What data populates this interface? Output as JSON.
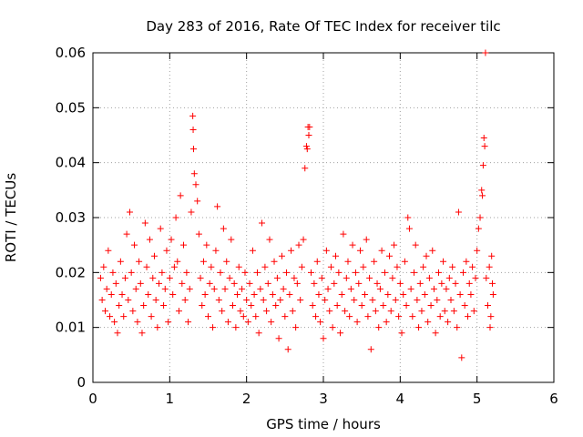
{
  "chart_data": {
    "type": "scatter",
    "title": "Day 283 of 2016, Rate Of TEC Index for receiver tilc",
    "xlabel": "GPS time / hours",
    "ylabel": "ROTI / TECUs",
    "xlim": [
      0,
      6
    ],
    "ylim": [
      0,
      0.06
    ],
    "xticks": [
      0,
      1,
      2,
      3,
      4,
      5,
      6
    ],
    "xtick_labels": [
      "0",
      "1",
      "2",
      "3",
      "4",
      "5",
      "6"
    ],
    "yticks": [
      0,
      0.01,
      0.02,
      0.03,
      0.04,
      0.05,
      0.06
    ],
    "ytick_labels": [
      "0",
      "0.01",
      "0.02",
      "0.03",
      "0.04",
      "0.05",
      "0.06"
    ],
    "grid": true,
    "marker": "+",
    "marker_color": "#ff0000",
    "series": [
      {
        "name": "ROTI",
        "points": [
          [
            0.1,
            0.019
          ],
          [
            0.12,
            0.015
          ],
          [
            0.14,
            0.021
          ],
          [
            0.16,
            0.013
          ],
          [
            0.18,
            0.017
          ],
          [
            0.2,
            0.024
          ],
          [
            0.22,
            0.012
          ],
          [
            0.24,
            0.016
          ],
          [
            0.26,
            0.02
          ],
          [
            0.28,
            0.011
          ],
          [
            0.3,
            0.018
          ],
          [
            0.32,
            0.009
          ],
          [
            0.34,
            0.014
          ],
          [
            0.36,
            0.022
          ],
          [
            0.38,
            0.016
          ],
          [
            0.4,
            0.012
          ],
          [
            0.42,
            0.019
          ],
          [
            0.44,
            0.027
          ],
          [
            0.46,
            0.015
          ],
          [
            0.48,
            0.031
          ],
          [
            0.5,
            0.02
          ],
          [
            0.52,
            0.013
          ],
          [
            0.54,
            0.025
          ],
          [
            0.56,
            0.017
          ],
          [
            0.58,
            0.011
          ],
          [
            0.6,
            0.022
          ],
          [
            0.62,
            0.018
          ],
          [
            0.64,
            0.009
          ],
          [
            0.66,
            0.014
          ],
          [
            0.68,
            0.029
          ],
          [
            0.7,
            0.021
          ],
          [
            0.72,
            0.016
          ],
          [
            0.74,
            0.026
          ],
          [
            0.76,
            0.012
          ],
          [
            0.78,
            0.019
          ],
          [
            0.8,
            0.023
          ],
          [
            0.82,
            0.015
          ],
          [
            0.84,
            0.01
          ],
          [
            0.86,
            0.018
          ],
          [
            0.88,
            0.028
          ],
          [
            0.9,
            0.02
          ],
          [
            0.92,
            0.014
          ],
          [
            0.94,
            0.017
          ],
          [
            0.96,
            0.024
          ],
          [
            0.98,
            0.011
          ],
          [
            1.0,
            0.019
          ],
          [
            1.02,
            0.026
          ],
          [
            1.04,
            0.016
          ],
          [
            1.06,
            0.021
          ],
          [
            1.08,
            0.03
          ],
          [
            1.1,
            0.022
          ],
          [
            1.12,
            0.013
          ],
          [
            1.14,
            0.034
          ],
          [
            1.16,
            0.018
          ],
          [
            1.18,
            0.025
          ],
          [
            1.2,
            0.015
          ],
          [
            1.22,
            0.02
          ],
          [
            1.24,
            0.011
          ],
          [
            1.26,
            0.017
          ],
          [
            1.28,
            0.031
          ],
          [
            1.3,
            0.0485
          ],
          [
            1.305,
            0.046
          ],
          [
            1.31,
            0.0425
          ],
          [
            1.32,
            0.038
          ],
          [
            1.34,
            0.036
          ],
          [
            1.36,
            0.033
          ],
          [
            1.38,
            0.027
          ],
          [
            1.4,
            0.019
          ],
          [
            1.42,
            0.014
          ],
          [
            1.44,
            0.022
          ],
          [
            1.46,
            0.016
          ],
          [
            1.48,
            0.025
          ],
          [
            1.5,
            0.012
          ],
          [
            1.52,
            0.018
          ],
          [
            1.54,
            0.021
          ],
          [
            1.56,
            0.01
          ],
          [
            1.58,
            0.017
          ],
          [
            1.6,
            0.024
          ],
          [
            1.62,
            0.032
          ],
          [
            1.64,
            0.015
          ],
          [
            1.66,
            0.02
          ],
          [
            1.68,
            0.013
          ],
          [
            1.7,
            0.028
          ],
          [
            1.72,
            0.017
          ],
          [
            1.74,
            0.022
          ],
          [
            1.76,
            0.011
          ],
          [
            1.78,
            0.019
          ],
          [
            1.8,
            0.026
          ],
          [
            1.82,
            0.014
          ],
          [
            1.84,
            0.018
          ],
          [
            1.86,
            0.01
          ],
          [
            1.88,
            0.016
          ],
          [
            1.9,
            0.021
          ],
          [
            1.92,
            0.013
          ],
          [
            1.94,
            0.017
          ],
          [
            1.96,
            0.012
          ],
          [
            1.98,
            0.02
          ],
          [
            2.0,
            0.015
          ],
          [
            2.02,
            0.011
          ],
          [
            2.04,
            0.018
          ],
          [
            2.06,
            0.014
          ],
          [
            2.08,
            0.024
          ],
          [
            2.1,
            0.016
          ],
          [
            2.12,
            0.012
          ],
          [
            2.14,
            0.02
          ],
          [
            2.16,
            0.009
          ],
          [
            2.18,
            0.017
          ],
          [
            2.2,
            0.029
          ],
          [
            2.22,
            0.015
          ],
          [
            2.24,
            0.021
          ],
          [
            2.26,
            0.013
          ],
          [
            2.28,
            0.018
          ],
          [
            2.3,
            0.026
          ],
          [
            2.32,
            0.011
          ],
          [
            2.34,
            0.016
          ],
          [
            2.36,
            0.022
          ],
          [
            2.38,
            0.014
          ],
          [
            2.4,
            0.019
          ],
          [
            2.42,
            0.008
          ],
          [
            2.44,
            0.015
          ],
          [
            2.46,
            0.023
          ],
          [
            2.48,
            0.017
          ],
          [
            2.5,
            0.012
          ],
          [
            2.52,
            0.02
          ],
          [
            2.54,
            0.006
          ],
          [
            2.56,
            0.016
          ],
          [
            2.58,
            0.024
          ],
          [
            2.6,
            0.013
          ],
          [
            2.62,
            0.019
          ],
          [
            2.64,
            0.01
          ],
          [
            2.66,
            0.018
          ],
          [
            2.68,
            0.025
          ],
          [
            2.7,
            0.015
          ],
          [
            2.72,
            0.021
          ],
          [
            2.74,
            0.026
          ],
          [
            2.76,
            0.039
          ],
          [
            2.78,
            0.043
          ],
          [
            2.79,
            0.0425
          ],
          [
            2.8,
            0.0465
          ],
          [
            2.81,
            0.045
          ],
          [
            2.82,
            0.0465
          ],
          [
            2.84,
            0.02
          ],
          [
            2.86,
            0.014
          ],
          [
            2.88,
            0.018
          ],
          [
            2.9,
            0.012
          ],
          [
            2.92,
            0.022
          ],
          [
            2.94,
            0.016
          ],
          [
            2.96,
            0.011
          ],
          [
            2.98,
            0.019
          ],
          [
            3.0,
            0.008
          ],
          [
            3.02,
            0.015
          ],
          [
            3.04,
            0.024
          ],
          [
            3.06,
            0.017
          ],
          [
            3.08,
            0.013
          ],
          [
            3.1,
            0.021
          ],
          [
            3.12,
            0.01
          ],
          [
            3.14,
            0.018
          ],
          [
            3.16,
            0.023
          ],
          [
            3.18,
            0.014
          ],
          [
            3.2,
            0.02
          ],
          [
            3.22,
            0.009
          ],
          [
            3.24,
            0.016
          ],
          [
            3.26,
            0.027
          ],
          [
            3.28,
            0.013
          ],
          [
            3.3,
            0.019
          ],
          [
            3.32,
            0.022
          ],
          [
            3.34,
            0.012
          ],
          [
            3.36,
            0.017
          ],
          [
            3.38,
            0.025
          ],
          [
            3.4,
            0.015
          ],
          [
            3.42,
            0.02
          ],
          [
            3.44,
            0.011
          ],
          [
            3.46,
            0.018
          ],
          [
            3.48,
            0.024
          ],
          [
            3.5,
            0.014
          ],
          [
            3.52,
            0.021
          ],
          [
            3.54,
            0.016
          ],
          [
            3.56,
            0.026
          ],
          [
            3.58,
            0.012
          ],
          [
            3.6,
            0.019
          ],
          [
            3.62,
            0.006
          ],
          [
            3.64,
            0.015
          ],
          [
            3.66,
            0.022
          ],
          [
            3.68,
            0.013
          ],
          [
            3.7,
            0.018
          ],
          [
            3.72,
            0.01
          ],
          [
            3.74,
            0.017
          ],
          [
            3.76,
            0.024
          ],
          [
            3.78,
            0.014
          ],
          [
            3.8,
            0.02
          ],
          [
            3.82,
            0.011
          ],
          [
            3.84,
            0.016
          ],
          [
            3.86,
            0.023
          ],
          [
            3.88,
            0.013
          ],
          [
            3.9,
            0.019
          ],
          [
            3.92,
            0.025
          ],
          [
            3.94,
            0.015
          ],
          [
            3.96,
            0.021
          ],
          [
            3.98,
            0.012
          ],
          [
            4.0,
            0.018
          ],
          [
            4.02,
            0.009
          ],
          [
            4.04,
            0.016
          ],
          [
            4.06,
            0.022
          ],
          [
            4.08,
            0.014
          ],
          [
            4.1,
            0.03
          ],
          [
            4.12,
            0.028
          ],
          [
            4.14,
            0.017
          ],
          [
            4.16,
            0.012
          ],
          [
            4.18,
            0.02
          ],
          [
            4.2,
            0.025
          ],
          [
            4.22,
            0.015
          ],
          [
            4.24,
            0.01
          ],
          [
            4.26,
            0.018
          ],
          [
            4.28,
            0.013
          ],
          [
            4.3,
            0.021
          ],
          [
            4.32,
            0.016
          ],
          [
            4.34,
            0.023
          ],
          [
            4.36,
            0.011
          ],
          [
            4.38,
            0.019
          ],
          [
            4.4,
            0.014
          ],
          [
            4.42,
            0.024
          ],
          [
            4.44,
            0.017
          ],
          [
            4.46,
            0.009
          ],
          [
            4.48,
            0.015
          ],
          [
            4.5,
            0.02
          ],
          [
            4.52,
            0.012
          ],
          [
            4.54,
            0.018
          ],
          [
            4.56,
            0.022
          ],
          [
            4.58,
            0.013
          ],
          [
            4.6,
            0.017
          ],
          [
            4.62,
            0.011
          ],
          [
            4.64,
            0.019
          ],
          [
            4.66,
            0.015
          ],
          [
            4.68,
            0.021
          ],
          [
            4.7,
            0.013
          ],
          [
            4.72,
            0.018
          ],
          [
            4.74,
            0.01
          ],
          [
            4.76,
            0.031
          ],
          [
            4.78,
            0.016
          ],
          [
            4.8,
            0.0045
          ],
          [
            4.82,
            0.02
          ],
          [
            4.84,
            0.014
          ],
          [
            4.86,
            0.022
          ],
          [
            4.88,
            0.012
          ],
          [
            4.9,
            0.018
          ],
          [
            4.92,
            0.016
          ],
          [
            4.94,
            0.021
          ],
          [
            4.96,
            0.013
          ],
          [
            4.98,
            0.019
          ],
          [
            5.0,
            0.024
          ],
          [
            5.02,
            0.028
          ],
          [
            5.04,
            0.03
          ],
          [
            5.06,
            0.035
          ],
          [
            5.07,
            0.034
          ],
          [
            5.08,
            0.0395
          ],
          [
            5.09,
            0.0445
          ],
          [
            5.1,
            0.043
          ],
          [
            5.11,
            0.06
          ],
          [
            5.12,
            0.019
          ],
          [
            5.14,
            0.014
          ],
          [
            5.16,
            0.021
          ],
          [
            5.18,
            0.012
          ],
          [
            5.2,
            0.018
          ],
          [
            5.21,
            0.016
          ],
          [
            5.19,
            0.023
          ],
          [
            5.17,
            0.01
          ]
        ]
      }
    ]
  }
}
